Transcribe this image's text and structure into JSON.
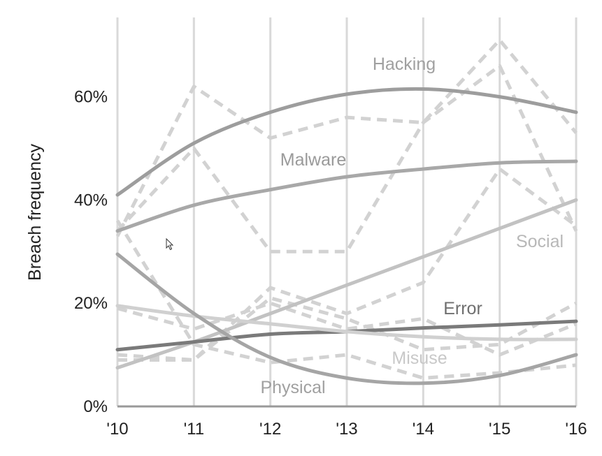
{
  "chart_data": {
    "type": "line",
    "ylabel": "Breach frequency",
    "x": [
      "'10",
      "'11",
      "'12",
      "'13",
      "'14",
      "'15",
      "'16"
    ],
    "ylim": [
      0,
      70
    ],
    "yticks": [
      0,
      20,
      40,
      60
    ],
    "yticklabels": [
      "0%",
      "20%",
      "40%",
      "60%"
    ],
    "grid": "vertical",
    "series": [
      {
        "name": "Hacking",
        "color": "#9d9d9d",
        "trend": [
          41,
          51,
          57,
          60.5,
          61.5,
          60,
          57
        ],
        "observed": [
          33,
          62,
          52,
          56,
          55,
          71,
          53
        ]
      },
      {
        "name": "Malware",
        "color": "#a8a8a8",
        "trend": [
          34,
          39,
          42,
          44.5,
          46,
          47.2,
          47.5
        ],
        "observed": [
          34,
          50,
          30,
          30,
          55,
          66,
          34
        ]
      },
      {
        "name": "Social",
        "color": "#c2c2c2",
        "trend": [
          7.5,
          12.5,
          18,
          23.5,
          29,
          34.5,
          40
        ],
        "observed": [
          10,
          9,
          23,
          18,
          24,
          46,
          35
        ]
      },
      {
        "name": "Error",
        "color": "#7a7a7a",
        "trend": [
          11,
          12.5,
          14,
          14.5,
          15.2,
          15.8,
          16.5
        ],
        "observed": [
          9,
          9,
          21,
          17,
          11,
          12,
          20
        ]
      },
      {
        "name": "Misuse",
        "color": "#d0d0d0",
        "trend": [
          19.5,
          17.5,
          16,
          14.5,
          13.5,
          13,
          13
        ],
        "observed": [
          19,
          15,
          20,
          15,
          17,
          10,
          16
        ]
      },
      {
        "name": "Physical",
        "color": "#a5a5a5",
        "trend": [
          29.5,
          18,
          9.5,
          5.5,
          4.5,
          6,
          10
        ],
        "observed": [
          36,
          12,
          8.5,
          10,
          5.5,
          6.5,
          8
        ]
      }
    ]
  },
  "icons": {
    "cursor": "mouse-pointer-icon"
  }
}
